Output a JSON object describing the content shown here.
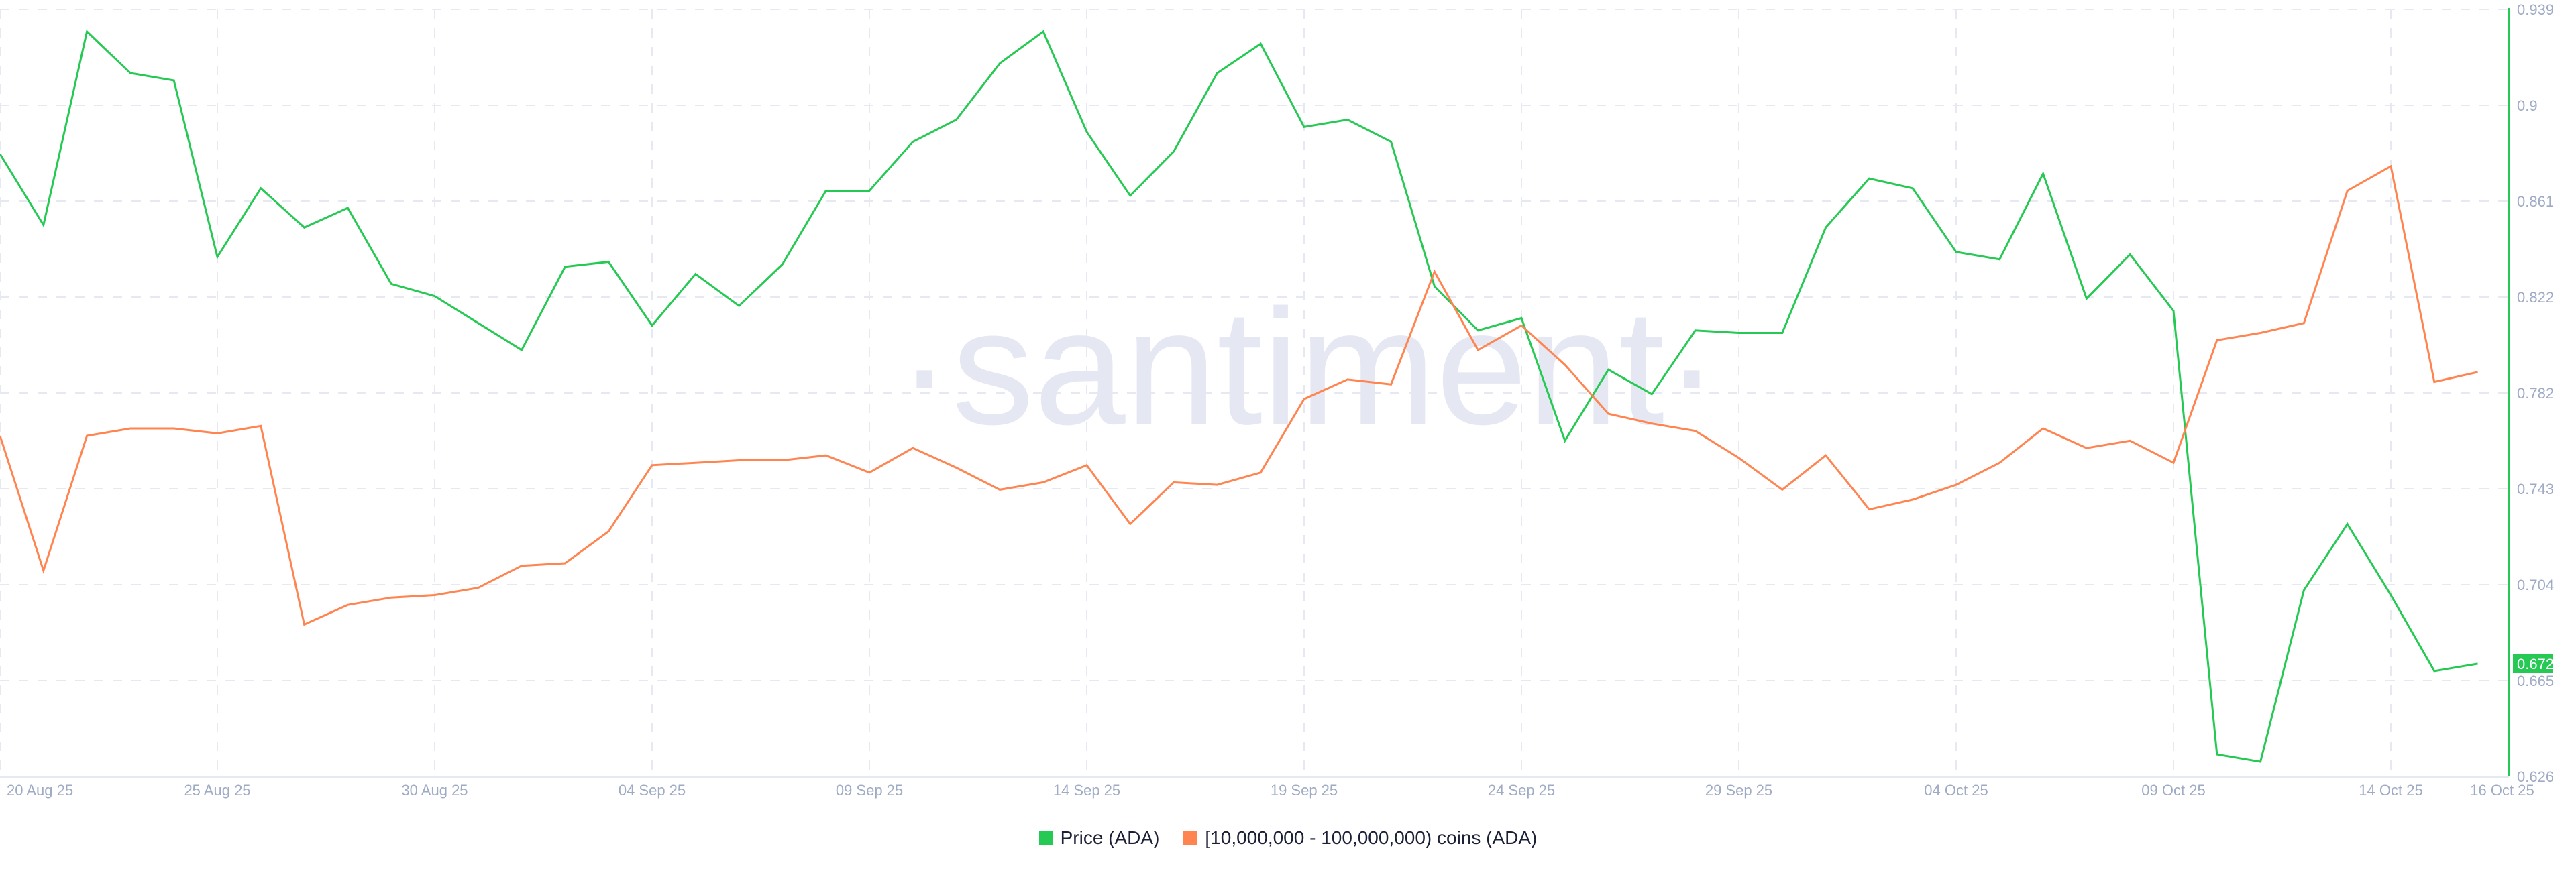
{
  "chart_data": {
    "type": "line",
    "title": "",
    "watermark": "·santiment·",
    "xlabel": "",
    "ylabel": "",
    "ylim": [
      0.626,
      0.939
    ],
    "y_ticks": [
      "0.939",
      "0.9",
      "0.861",
      "0.822",
      "0.782",
      "0.743",
      "0.704",
      "0.665",
      "0.626"
    ],
    "x_ticks": [
      {
        "label": "20 Aug 25",
        "day": 0
      },
      {
        "label": "25 Aug 25",
        "day": 5
      },
      {
        "label": "30 Aug 25",
        "day": 10
      },
      {
        "label": "04 Sep 25",
        "day": 15
      },
      {
        "label": "09 Sep 25",
        "day": 20
      },
      {
        "label": "14 Sep 25",
        "day": 25
      },
      {
        "label": "19 Sep 25",
        "day": 30
      },
      {
        "label": "24 Sep 25",
        "day": 35
      },
      {
        "label": "29 Sep 25",
        "day": 40
      },
      {
        "label": "04 Oct 25",
        "day": 45
      },
      {
        "label": "09 Oct 25",
        "day": 50
      },
      {
        "label": "14 Oct 25",
        "day": 55
      },
      {
        "label": "16 Oct 25",
        "day": 57
      }
    ],
    "x_start": "20 Aug 25",
    "x_end": "16 Oct 25",
    "grid": true,
    "legend_position": "bottom",
    "current_value_badge": {
      "label": "0.672",
      "color": "#26c953"
    },
    "series": [
      {
        "name": "Price (ADA)",
        "color": "#26c953",
        "axis": "right",
        "values": [
          0.88,
          0.851,
          0.93,
          0.913,
          0.91,
          0.838,
          0.866,
          0.85,
          0.858,
          0.827,
          0.822,
          0.811,
          0.8,
          0.834,
          0.836,
          0.81,
          0.831,
          0.818,
          0.835,
          0.865,
          0.865,
          0.885,
          0.894,
          0.917,
          0.93,
          0.889,
          0.863,
          0.881,
          0.913,
          0.925,
          0.891,
          0.894,
          0.885,
          0.826,
          0.808,
          0.813,
          0.763,
          0.792,
          0.782,
          0.808,
          0.807,
          0.807,
          0.85,
          0.87,
          0.866,
          0.84,
          0.837,
          0.872,
          0.821,
          0.839,
          0.816,
          0.635,
          0.632,
          0.702,
          0.729,
          0.7,
          0.669,
          0.672
        ]
      },
      {
        "name": "[10,000,000 - 100,000,000) coins (ADA)",
        "color": "#ff8450",
        "axis": "hidden (plotted against visible price scale positions)",
        "values": [
          0.765,
          0.71,
          0.765,
          0.768,
          0.768,
          0.766,
          0.769,
          0.688,
          0.696,
          0.699,
          0.7,
          0.703,
          0.712,
          0.713,
          0.726,
          0.753,
          0.754,
          0.755,
          0.755,
          0.757,
          0.75,
          0.76,
          0.752,
          0.743,
          0.746,
          0.753,
          0.729,
          0.746,
          0.745,
          0.75,
          0.78,
          0.788,
          0.786,
          0.832,
          0.8,
          0.81,
          0.794,
          0.774,
          0.77,
          0.767,
          0.756,
          0.743,
          0.757,
          0.735,
          0.739,
          0.745,
          0.754,
          0.768,
          0.76,
          0.763,
          0.754,
          0.804,
          0.807,
          0.811,
          0.865,
          0.875,
          0.787,
          0.791
        ]
      }
    ]
  },
  "legend": {
    "items": [
      {
        "label": "Price (ADA)",
        "color": "#26c953"
      },
      {
        "label": "[10,000,000 - 100,000,000) coins (ADA)",
        "color": "#ff8450"
      }
    ]
  },
  "colors": {
    "grid": "#e6e9f2",
    "axis_text": "#9faac4",
    "axis_line": "#26c953",
    "baseline": "#e6e9f2",
    "watermark": "#e5e8f2"
  }
}
